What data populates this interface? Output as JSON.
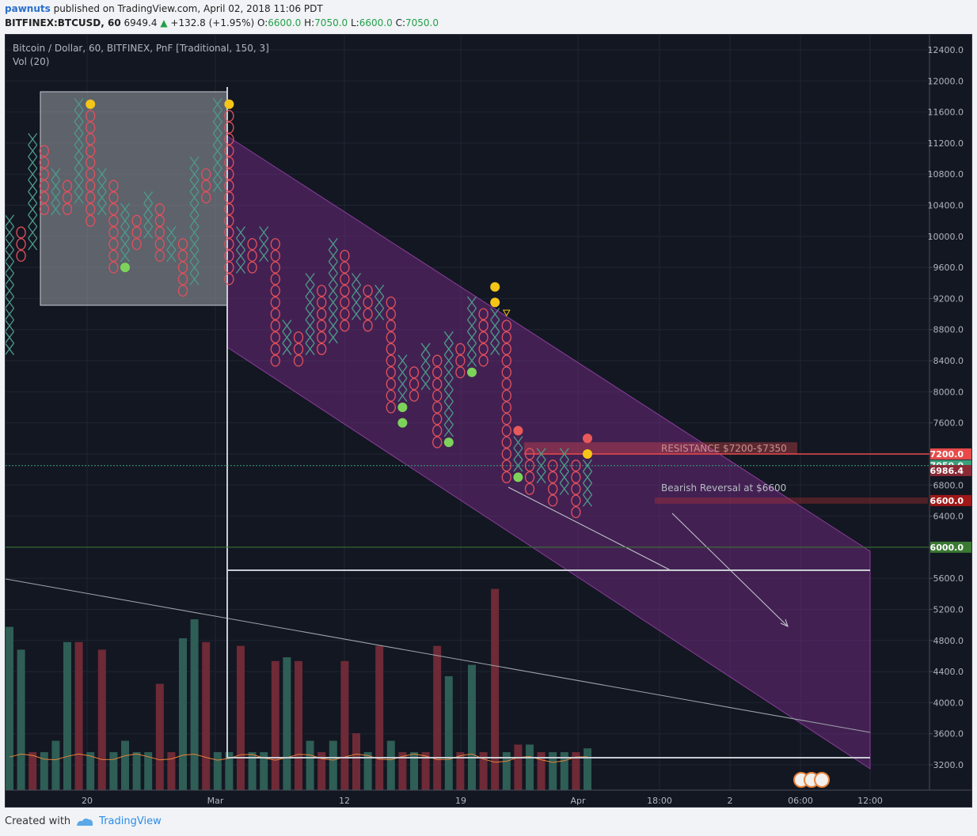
{
  "header": {
    "user": "pawnuts",
    "published_text": "published on TradingView.com, April 02, 2018 11:06 PDT",
    "symbol": "BITFINEX:BTCUSD, 60",
    "price": "6949.4",
    "change": "+132.8 (+1.95%)",
    "o_label": "O:",
    "o_value": "6600.0",
    "h_label": "H:",
    "h_value": "7050.0",
    "l_label": "L:",
    "l_value": "6600.0",
    "c_label": "C:",
    "c_value": "7050.0"
  },
  "legend": {
    "title": "Bitcoin / Dollar, 60, BITFINEX, PnF [Traditional, 150, 3]",
    "volume": "Vol (20)"
  },
  "footer": {
    "created_with": "Created with",
    "brand": "TradingView"
  },
  "colors": {
    "background": "#131722",
    "x_mark": "#4e9a8a",
    "o_mark": "#e0505c",
    "channel": "#6a2a7a",
    "vol_up": "#2e5e55",
    "vol_down": "#6e2a36",
    "dot_yellow": "#f5c518",
    "dot_green": "#7dd35a",
    "dot_red": "#e85a5a",
    "resistance": "#e84a4a",
    "last_price": "#3aa07a",
    "level_6000": "#3a7a32"
  },
  "chart_data": {
    "type": "point-and-figure",
    "box_size": 150,
    "reversal": 3,
    "ylim": [
      2900,
      12600
    ],
    "y_ticks": [
      "12400.0",
      "12000.0",
      "11600.0",
      "11200.0",
      "10800.0",
      "10400.0",
      "10000.0",
      "9600.0",
      "9200.0",
      "8800.0",
      "8400.0",
      "8000.0",
      "7600.0",
      "7200.0",
      "6800.0",
      "6400.0",
      "6000.0",
      "5600.0",
      "5200.0",
      "4800.0",
      "4400.0",
      "4000.0",
      "3600.0",
      "3200.0"
    ],
    "x_ticks": [
      "20",
      "Mar",
      "12",
      "19",
      "Apr",
      "18:00",
      "2",
      "06:00",
      "12:00"
    ],
    "price_labels": [
      {
        "text": "7200.0",
        "value": 7200,
        "role": "resistance"
      },
      {
        "text": "7050.0",
        "value": 7050,
        "role": "last"
      },
      {
        "text": "6986.4",
        "value": 6986.4,
        "role": "marker"
      },
      {
        "text": "6600.0",
        "value": 6600,
        "role": "reversal"
      },
      {
        "text": "6000.0",
        "value": 6000,
        "role": "support"
      }
    ],
    "columns": [
      {
        "t": "X",
        "lo": 8550,
        "hi": 10200
      },
      {
        "t": "O",
        "lo": 9750,
        "hi": 10050
      },
      {
        "t": "X",
        "lo": 9900,
        "hi": 11250
      },
      {
        "t": "O",
        "lo": 10350,
        "hi": 11100
      },
      {
        "t": "X",
        "lo": 10350,
        "hi": 10800
      },
      {
        "t": "O",
        "lo": 10350,
        "hi": 10650
      },
      {
        "t": "X",
        "lo": 10500,
        "hi": 11700
      },
      {
        "t": "O",
        "lo": 10200,
        "hi": 11550
      },
      {
        "t": "X",
        "lo": 10350,
        "hi": 10800
      },
      {
        "t": "O",
        "lo": 9600,
        "hi": 10650
      },
      {
        "t": "X",
        "lo": 9750,
        "hi": 10350
      },
      {
        "t": "O",
        "lo": 9900,
        "hi": 10200
      },
      {
        "t": "X",
        "lo": 10050,
        "hi": 10500
      },
      {
        "t": "O",
        "lo": 9750,
        "hi": 10350
      },
      {
        "t": "X",
        "lo": 9750,
        "hi": 10050
      },
      {
        "t": "O",
        "lo": 9300,
        "hi": 9900
      },
      {
        "t": "X",
        "lo": 9450,
        "hi": 10950
      },
      {
        "t": "O",
        "lo": 10500,
        "hi": 10800
      },
      {
        "t": "X",
        "lo": 10650,
        "hi": 11700
      },
      {
        "t": "O",
        "lo": 9450,
        "hi": 11550
      },
      {
        "t": "X",
        "lo": 9600,
        "hi": 10050
      },
      {
        "t": "O",
        "lo": 9600,
        "hi": 9900
      },
      {
        "t": "X",
        "lo": 9750,
        "hi": 10050
      },
      {
        "t": "O",
        "lo": 8400,
        "hi": 9900
      },
      {
        "t": "X",
        "lo": 8550,
        "hi": 8850
      },
      {
        "t": "O",
        "lo": 8400,
        "hi": 8700
      },
      {
        "t": "X",
        "lo": 8550,
        "hi": 9450
      },
      {
        "t": "O",
        "lo": 8550,
        "hi": 9300
      },
      {
        "t": "X",
        "lo": 8700,
        "hi": 9900
      },
      {
        "t": "O",
        "lo": 8850,
        "hi": 9750
      },
      {
        "t": "X",
        "lo": 9000,
        "hi": 9450
      },
      {
        "t": "O",
        "lo": 8850,
        "hi": 9300
      },
      {
        "t": "X",
        "lo": 9000,
        "hi": 9300
      },
      {
        "t": "O",
        "lo": 7800,
        "hi": 9150
      },
      {
        "t": "X",
        "lo": 7950,
        "hi": 8400
      },
      {
        "t": "O",
        "lo": 7950,
        "hi": 8250
      },
      {
        "t": "X",
        "lo": 8100,
        "hi": 8550
      },
      {
        "t": "O",
        "lo": 7350,
        "hi": 8400
      },
      {
        "t": "X",
        "lo": 7500,
        "hi": 8700
      },
      {
        "t": "O",
        "lo": 8250,
        "hi": 8550
      },
      {
        "t": "X",
        "lo": 8400,
        "hi": 9150
      },
      {
        "t": "O",
        "lo": 8400,
        "hi": 9000
      },
      {
        "t": "X",
        "lo": 8550,
        "hi": 9000
      },
      {
        "t": "O",
        "lo": 6900,
        "hi": 8850
      },
      {
        "t": "X",
        "lo": 7050,
        "hi": 7350
      },
      {
        "t": "O",
        "lo": 6750,
        "hi": 7200
      },
      {
        "t": "X",
        "lo": 6900,
        "hi": 7200
      },
      {
        "t": "O",
        "lo": 6600,
        "hi": 7050
      },
      {
        "t": "X",
        "lo": 6750,
        "hi": 7200
      },
      {
        "t": "O",
        "lo": 6450,
        "hi": 7050
      },
      {
        "t": "X",
        "lo": 6600,
        "hi": 7050
      }
    ],
    "markers": [
      {
        "col": 7,
        "value": 11700,
        "color": "yellow"
      },
      {
        "col": 10,
        "value": 9600,
        "color": "green"
      },
      {
        "col": 19,
        "value": 11700,
        "color": "yellow"
      },
      {
        "col": 34,
        "value": 7800,
        "color": "green"
      },
      {
        "col": 34,
        "value": 7600,
        "color": "green"
      },
      {
        "col": 38,
        "value": 7350,
        "color": "green"
      },
      {
        "col": 40,
        "value": 8250,
        "color": "green"
      },
      {
        "col": 42,
        "value": 9350,
        "color": "yellow"
      },
      {
        "col": 42,
        "value": 9150,
        "color": "yellow"
      },
      {
        "col": 44,
        "value": 7500,
        "color": "red"
      },
      {
        "col": 44,
        "value": 6900,
        "color": "green"
      },
      {
        "col": 50,
        "value": 7400,
        "color": "red"
      },
      {
        "col": 50,
        "value": 7200,
        "color": "yellow"
      }
    ],
    "volume": {
      "ylim": [
        0,
        5000
      ],
      "values": [
        4300,
        3700,
        1000,
        1000,
        1300,
        3900,
        3900,
        1000,
        3700,
        1000,
        1300,
        1000,
        1000,
        2800,
        1000,
        4000,
        4500,
        3900,
        1000,
        1000,
        3800,
        1000,
        1000,
        3400,
        3500,
        3400,
        1300,
        1000,
        1300,
        3400,
        1500,
        1000,
        3800,
        1300,
        1000,
        1000,
        1000,
        3800,
        3000,
        1000,
        3300,
        1000,
        5300,
        1000,
        1200,
        1200,
        1000,
        1000,
        1000,
        1000,
        1100
      ],
      "down": [
        false,
        false,
        true,
        false,
        false,
        false,
        true,
        false,
        true,
        false,
        false,
        false,
        false,
        true,
        true,
        false,
        false,
        true,
        false,
        false,
        true,
        false,
        false,
        true,
        false,
        true,
        false,
        true,
        false,
        true,
        true,
        false,
        true,
        false,
        true,
        false,
        true,
        true,
        false,
        true,
        false,
        true,
        true,
        false,
        true,
        false,
        true,
        false,
        false,
        true,
        false
      ]
    },
    "annotations": [
      {
        "text": "RESISTANCE $7200-$7350",
        "kind": "label"
      },
      {
        "text": "Bearish Reversal at $6600",
        "kind": "label"
      }
    ]
  }
}
